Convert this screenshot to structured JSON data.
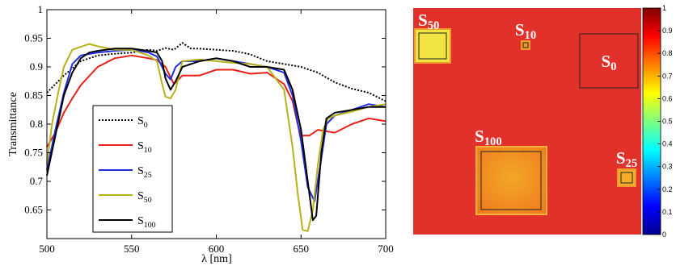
{
  "chart_data": [
    {
      "type": "line",
      "title": "",
      "xlabel": "λ [nm]",
      "ylabel": "Transmittance",
      "xlim": [
        500,
        700
      ],
      "ylim": [
        0.6,
        1.0
      ],
      "xticks": [
        "500",
        "550",
        "600",
        "650",
        "700"
      ],
      "yticks": [
        "0.65",
        "0.7",
        "0.75",
        "0.8",
        "0.85",
        "0.9",
        "0.95",
        "1"
      ],
      "grid": false,
      "legend_position": "lower-left",
      "series": [
        {
          "name": "S0",
          "base": "S",
          "sub": "0",
          "color": "#000000",
          "dash": "dotted",
          "x": [
            500,
            510,
            520,
            530,
            540,
            550,
            560,
            565,
            570,
            575,
            580,
            585,
            590,
            600,
            610,
            620,
            630,
            640,
            650,
            660,
            670,
            680,
            690,
            700
          ],
          "y": [
            0.855,
            0.885,
            0.91,
            0.92,
            0.923,
            0.925,
            0.93,
            0.928,
            0.933,
            0.93,
            0.942,
            0.932,
            0.932,
            0.93,
            0.928,
            0.922,
            0.91,
            0.905,
            0.9,
            0.89,
            0.873,
            0.862,
            0.855,
            0.84
          ]
        },
        {
          "name": "S10",
          "base": "S",
          "sub": "10",
          "color": "#e8201a",
          "dash": "solid",
          "x": [
            500,
            505,
            510,
            515,
            520,
            530,
            540,
            550,
            560,
            565,
            570,
            575,
            580,
            590,
            600,
            610,
            620,
            630,
            640,
            645,
            648,
            650,
            655,
            660,
            670,
            680,
            690,
            700
          ],
          "y": [
            0.76,
            0.785,
            0.82,
            0.845,
            0.868,
            0.9,
            0.915,
            0.92,
            0.915,
            0.912,
            0.9,
            0.87,
            0.885,
            0.885,
            0.895,
            0.895,
            0.888,
            0.89,
            0.87,
            0.84,
            0.8,
            0.78,
            0.78,
            0.79,
            0.785,
            0.8,
            0.81,
            0.805
          ]
        },
        {
          "name": "S25",
          "base": "S",
          "sub": "25",
          "color": "#1f2fe0",
          "dash": "solid",
          "x": [
            500,
            505,
            510,
            515,
            520,
            530,
            540,
            550,
            560,
            565,
            570,
            573,
            576,
            580,
            590,
            600,
            610,
            620,
            630,
            640,
            645,
            650,
            654,
            658,
            662,
            665,
            670,
            680,
            690,
            700
          ],
          "y": [
            0.72,
            0.79,
            0.855,
            0.905,
            0.92,
            0.925,
            0.928,
            0.93,
            0.925,
            0.918,
            0.888,
            0.878,
            0.9,
            0.91,
            0.91,
            0.915,
            0.91,
            0.905,
            0.9,
            0.89,
            0.85,
            0.77,
            0.69,
            0.665,
            0.74,
            0.8,
            0.815,
            0.825,
            0.835,
            0.83
          ]
        },
        {
          "name": "S50",
          "base": "S",
          "sub": "50",
          "color": "#b7b21a",
          "dash": "solid",
          "x": [
            500,
            503,
            507,
            510,
            515,
            520,
            525,
            530,
            540,
            550,
            560,
            565,
            568,
            570,
            573,
            576,
            580,
            590,
            600,
            610,
            620,
            630,
            640,
            645,
            648,
            651,
            654,
            657,
            660,
            663,
            666,
            670,
            680,
            690,
            700
          ],
          "y": [
            0.73,
            0.8,
            0.86,
            0.9,
            0.93,
            0.935,
            0.94,
            0.936,
            0.93,
            0.93,
            0.92,
            0.91,
            0.87,
            0.848,
            0.845,
            0.86,
            0.91,
            0.913,
            0.91,
            0.907,
            0.905,
            0.9,
            0.86,
            0.76,
            0.68,
            0.615,
            0.613,
            0.65,
            0.73,
            0.79,
            0.81,
            0.815,
            0.822,
            0.83,
            0.835
          ]
        },
        {
          "name": "S100",
          "base": "S",
          "sub": "100",
          "color": "#000000",
          "dash": "solid",
          "x": [
            500,
            505,
            510,
            515,
            520,
            525,
            530,
            540,
            550,
            560,
            565,
            568,
            570,
            573,
            576,
            580,
            590,
            600,
            610,
            620,
            630,
            640,
            645,
            650,
            654,
            657,
            659,
            662,
            665,
            670,
            680,
            690,
            700
          ],
          "y": [
            0.71,
            0.78,
            0.85,
            0.89,
            0.915,
            0.925,
            0.928,
            0.932,
            0.932,
            0.928,
            0.925,
            0.91,
            0.88,
            0.86,
            0.875,
            0.9,
            0.91,
            0.915,
            0.91,
            0.9,
            0.9,
            0.895,
            0.86,
            0.79,
            0.7,
            0.632,
            0.64,
            0.75,
            0.81,
            0.82,
            0.825,
            0.83,
            0.83
          ]
        }
      ]
    },
    {
      "type": "heatmap",
      "colormap": "jet",
      "colorbar_range": [
        0,
        1
      ],
      "colorbar_ticks": [
        "0",
        "0.1",
        "0.2",
        "0.3",
        "0.4",
        "0.5",
        "0.6",
        "0.7",
        "0.8",
        "0.9",
        "1"
      ],
      "background_value": 0.9,
      "squares": [
        {
          "label": "S50",
          "base": "S",
          "sub": "50",
          "value": 0.66
        },
        {
          "label": "S10",
          "base": "S",
          "sub": "10",
          "value": 0.85
        },
        {
          "label": "S0",
          "base": "S",
          "sub": "0",
          "value": 0.91
        },
        {
          "label": "S100",
          "base": "S",
          "sub": "100",
          "value": 0.8
        },
        {
          "label": "S25",
          "base": "S",
          "sub": "25",
          "value": 0.76
        }
      ]
    }
  ]
}
